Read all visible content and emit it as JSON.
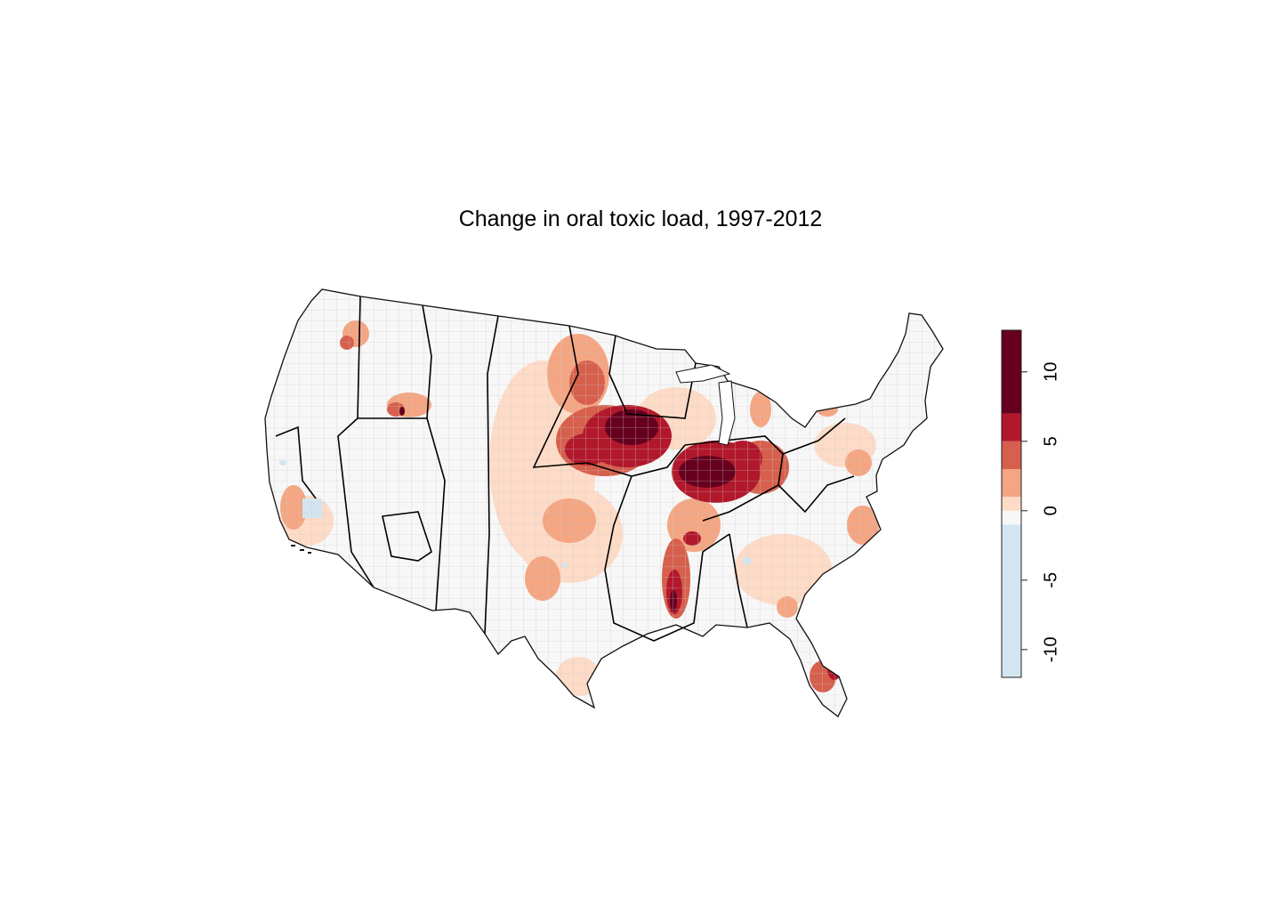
{
  "title": "Change in oral toxic load, 1997-2012",
  "colors": {
    "bin_neg": "#d2e5f0",
    "bin_zero": "#f7f7f7",
    "bin_1": "#fddbc7",
    "bin_2": "#f4a582",
    "bin_3": "#d6604d",
    "bin_4": "#b2182b",
    "bin_5": "#67001f",
    "state_border": "#000000",
    "county_border": "#bdbdbd"
  },
  "chart_data": {
    "type": "choropleth",
    "region": "contiguous United States (counties)",
    "title": "Change in oral toxic load, 1997-2012",
    "legend": {
      "placement": "right",
      "orientation": "vertical",
      "range": [
        -12,
        13
      ],
      "ticks": [
        {
          "value": 10,
          "label": "10"
        },
        {
          "value": 5,
          "label": "5"
        },
        {
          "value": 0,
          "label": "0"
        },
        {
          "value": -5,
          "label": "-5"
        },
        {
          "value": -10,
          "label": "-10"
        }
      ],
      "bins": [
        {
          "from": -12,
          "to": -1,
          "color": "#d2e5f0"
        },
        {
          "from": -1,
          "to": 0,
          "color": "#f7f7f7"
        },
        {
          "from": 0,
          "to": 1,
          "color": "#fddbc7"
        },
        {
          "from": 1,
          "to": 3,
          "color": "#f4a582"
        },
        {
          "from": 3,
          "to": 5,
          "color": "#d6604d"
        },
        {
          "from": 5,
          "to": 7,
          "color": "#b2182b"
        },
        {
          "from": 7,
          "to": 13,
          "color": "#67001f"
        }
      ]
    },
    "hotspots": [
      {
        "area": "Iowa / southern Minnesota",
        "bin": 5
      },
      {
        "area": "Illinois / Indiana",
        "bin": 5
      },
      {
        "area": "Nebraska / South Dakota",
        "bin": 4
      },
      {
        "area": "Ohio",
        "bin": 4
      },
      {
        "area": "Mississippi Delta",
        "bin": 4
      },
      {
        "area": "Southern Florida",
        "bin": 4
      },
      {
        "area": "Great Plains",
        "bin": 2
      },
      {
        "area": "Southern California",
        "bin": 2
      },
      {
        "area": "Southeast coastal plain",
        "bin": 2
      }
    ]
  }
}
